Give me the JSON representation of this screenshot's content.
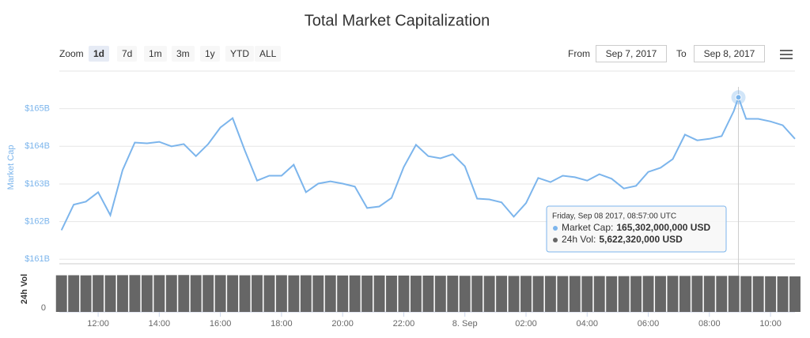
{
  "ui": {
    "zoom_label": "Zoom",
    "zoom_buttons": [
      "1d",
      "7d",
      "1m",
      "3m",
      "1y",
      "YTD",
      "ALL"
    ],
    "active_zoom": "1d",
    "from_label": "From",
    "from_value": "Sep 7, 2017",
    "to_label": "To",
    "to_value": "Sep 8, 2017"
  },
  "chart_data": {
    "type": "line",
    "title": "Total Market Capitalization",
    "ylabel": "Market Cap",
    "y2label": "24h Vol",
    "xlim": [
      10.73,
      34.8
    ],
    "xticks": [
      {
        "value": 12,
        "label": "12:00"
      },
      {
        "value": 14,
        "label": "14:00"
      },
      {
        "value": 16,
        "label": "16:00"
      },
      {
        "value": 18,
        "label": "18:00"
      },
      {
        "value": 20,
        "label": "20:00"
      },
      {
        "value": 22,
        "label": "22:00"
      },
      {
        "value": 24,
        "label": "8. Sep"
      },
      {
        "value": 26,
        "label": "02:00"
      },
      {
        "value": 28,
        "label": "04:00"
      },
      {
        "value": 30,
        "label": "06:00"
      },
      {
        "value": 32,
        "label": "08:00"
      },
      {
        "value": 34,
        "label": "10:00"
      }
    ],
    "ylim": [
      160.9,
      166
    ],
    "yticks": [
      {
        "value": 161,
        "label": "$161B"
      },
      {
        "value": 162,
        "label": "$162B"
      },
      {
        "value": 163,
        "label": "$163B"
      },
      {
        "value": 164,
        "label": "$164B"
      },
      {
        "value": 165,
        "label": "$165B"
      }
    ],
    "y2lim": [
      0,
      7000000000
    ],
    "y2ticks": [
      0
    ],
    "grid": true,
    "series": [
      {
        "name": "Market Cap",
        "color": "#7cb5ec",
        "x": [
          10.8,
          11.2,
          11.6,
          12.0,
          12.4,
          12.8,
          13.2,
          13.6,
          14.0,
          14.4,
          14.8,
          15.2,
          15.6,
          16.0,
          16.4,
          16.8,
          17.2,
          17.6,
          18.0,
          18.4,
          18.8,
          19.2,
          19.6,
          20.0,
          20.4,
          20.8,
          21.2,
          21.6,
          22.0,
          22.4,
          22.8,
          23.2,
          23.6,
          24.0,
          24.4,
          24.8,
          25.2,
          25.6,
          26.0,
          26.4,
          26.8,
          27.2,
          27.6,
          28.0,
          28.4,
          28.8,
          29.2,
          29.6,
          30.0,
          30.4,
          30.8,
          31.2,
          31.6,
          32.0,
          32.4,
          32.8,
          32.95,
          33.2,
          33.6,
          34.0,
          34.4,
          34.8
        ],
        "values": [
          161.77,
          162.45,
          162.53,
          162.78,
          162.17,
          163.37,
          164.1,
          164.08,
          164.12,
          164.0,
          164.06,
          163.74,
          164.06,
          164.5,
          164.75,
          163.89,
          163.09,
          163.22,
          163.22,
          163.51,
          162.78,
          163.01,
          163.07,
          163.01,
          162.93,
          162.36,
          162.4,
          162.63,
          163.45,
          164.04,
          163.74,
          163.68,
          163.79,
          163.47,
          162.61,
          162.59,
          162.51,
          162.13,
          162.49,
          163.16,
          163.05,
          163.22,
          163.18,
          163.09,
          163.26,
          163.14,
          162.88,
          162.95,
          163.32,
          163.43,
          163.66,
          164.31,
          164.16,
          164.2,
          164.27,
          164.94,
          165.302,
          164.73,
          164.73,
          164.66,
          164.56,
          164.2
        ]
      },
      {
        "name": "24h Vol",
        "color": "#666666",
        "axis": "y2",
        "x": [
          10.8,
          11.2,
          11.6,
          12.0,
          12.4,
          12.8,
          13.2,
          13.6,
          14.0,
          14.4,
          14.8,
          15.2,
          15.6,
          16.0,
          16.4,
          16.8,
          17.2,
          17.6,
          18.0,
          18.4,
          18.8,
          19.2,
          19.6,
          20.0,
          20.4,
          20.8,
          21.2,
          21.6,
          22.0,
          22.4,
          22.8,
          23.2,
          23.6,
          24.0,
          24.4,
          24.8,
          25.2,
          25.6,
          26.0,
          26.4,
          26.8,
          27.2,
          27.6,
          28.0,
          28.4,
          28.8,
          29.2,
          29.6,
          30.0,
          30.4,
          30.8,
          31.2,
          31.6,
          32.0,
          32.4,
          32.8,
          33.2,
          33.6,
          34.0,
          34.4,
          34.8
        ],
        "values": [
          5700000000,
          5710000000,
          5690000000,
          5720000000,
          5700000000,
          5720000000,
          5730000000,
          5710000000,
          5720000000,
          5730000000,
          5740000000,
          5720000000,
          5730000000,
          5720000000,
          5710000000,
          5700000000,
          5720000000,
          5700000000,
          5710000000,
          5690000000,
          5700000000,
          5680000000,
          5690000000,
          5670000000,
          5680000000,
          5660000000,
          5670000000,
          5650000000,
          5660000000,
          5640000000,
          5650000000,
          5630000000,
          5640000000,
          5620000000,
          5630000000,
          5610000000,
          5620000000,
          5600000000,
          5610000000,
          5590000000,
          5600000000,
          5580000000,
          5590000000,
          5570000000,
          5580000000,
          5560000000,
          5570000000,
          5580000000,
          5600000000,
          5590000000,
          5610000000,
          5600000000,
          5620000000,
          5610000000,
          5600000000,
          5620000000,
          5570000000,
          5560000000,
          5550000000,
          5540000000,
          5530000000
        ]
      }
    ],
    "tooltip": {
      "date": "Friday, Sep 08 2017, 08:57:00 UTC",
      "cap_label": "Market Cap:",
      "cap_value": "165,302,000,000 USD",
      "vol_label": "24h Vol:",
      "vol_value": "5,622,320,000 USD"
    }
  }
}
